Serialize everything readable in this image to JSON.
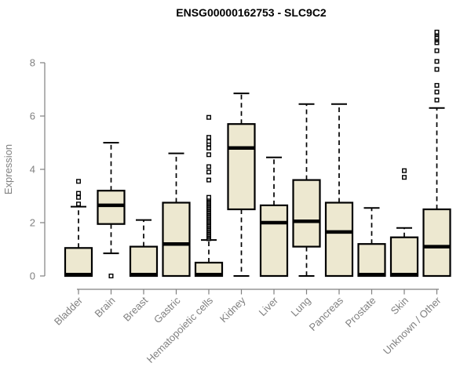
{
  "chart_data": {
    "type": "box",
    "title": "ENSG00000162753 - SLC9C2",
    "ylabel": "Expression",
    "xlabel": "",
    "ylim": [
      0,
      8
    ],
    "yticks": [
      0,
      2,
      4,
      6,
      8
    ],
    "grid": false,
    "legend_position": "none",
    "colors": {
      "box_fill": "#EDE8D0",
      "box_stroke": "#000000",
      "median": "#000000",
      "whisker": "#000000",
      "outlier": "#000000",
      "axis": "#808080",
      "tick_label": "#808080",
      "title": "#000000"
    },
    "categories": [
      "Bladder",
      "Brain",
      "Breast",
      "Gastric",
      "Hematopoietic cells",
      "Kidney",
      "Liver",
      "Lung",
      "Pancreas",
      "Prostate",
      "Skin",
      "Unknown / Other"
    ],
    "series": [
      {
        "category": "Bladder",
        "q1": 0,
        "median": 0.05,
        "q3": 1.05,
        "whisker_low": null,
        "whisker_high": 2.6,
        "outliers": [
          2.7,
          2.95,
          3.1,
          3.55
        ]
      },
      {
        "category": "Brain",
        "q1": 1.95,
        "median": 2.65,
        "q3": 3.2,
        "whisker_low": 0.85,
        "whisker_high": 5.0,
        "outliers": [
          0
        ]
      },
      {
        "category": "Breast",
        "q1": 0,
        "median": 0.05,
        "q3": 1.1,
        "whisker_low": null,
        "whisker_high": 2.1,
        "outliers": []
      },
      {
        "category": "Gastric",
        "q1": 0,
        "median": 1.2,
        "q3": 2.75,
        "whisker_low": null,
        "whisker_high": 4.6,
        "outliers": []
      },
      {
        "category": "Hematopoietic cells",
        "q1": 0,
        "median": 0.05,
        "q3": 0.5,
        "whisker_low": null,
        "whisker_high": 1.35,
        "outliers": [
          1.4,
          1.45,
          1.5,
          1.55,
          1.6,
          1.65,
          1.7,
          1.75,
          1.8,
          1.85,
          1.9,
          1.95,
          2.0,
          2.05,
          2.1,
          2.15,
          2.2,
          2.25,
          2.3,
          2.35,
          2.4,
          2.45,
          2.5,
          2.55,
          2.6,
          2.65,
          2.7,
          2.75,
          2.8,
          2.85,
          2.9,
          2.95,
          3.6,
          3.9,
          4.1,
          4.55,
          4.8,
          4.95,
          5.05,
          5.2,
          5.95
        ]
      },
      {
        "category": "Kidney",
        "q1": 2.5,
        "median": 4.8,
        "q3": 5.7,
        "whisker_low": 0,
        "whisker_high": 6.85,
        "outliers": []
      },
      {
        "category": "Liver",
        "q1": 0,
        "median": 2.0,
        "q3": 2.65,
        "whisker_low": null,
        "whisker_high": 4.45,
        "outliers": []
      },
      {
        "category": "Lung",
        "q1": 1.1,
        "median": 2.05,
        "q3": 3.6,
        "whisker_low": 0,
        "whisker_high": 6.45,
        "outliers": []
      },
      {
        "category": "Pancreas",
        "q1": 0,
        "median": 1.65,
        "q3": 2.75,
        "whisker_low": null,
        "whisker_high": 6.45,
        "outliers": []
      },
      {
        "category": "Prostate",
        "q1": 0,
        "median": 0.05,
        "q3": 1.2,
        "whisker_low": null,
        "whisker_high": 2.55,
        "outliers": []
      },
      {
        "category": "Skin",
        "q1": 0,
        "median": 0.05,
        "q3": 1.45,
        "whisker_low": null,
        "whisker_high": 1.8,
        "outliers": [
          3.7,
          3.95
        ]
      },
      {
        "category": "Unknown / Other",
        "q1": 0,
        "median": 1.1,
        "q3": 2.5,
        "whisker_low": null,
        "whisker_high": 6.3,
        "outliers": [
          6.6,
          6.9,
          7.15,
          7.75,
          8.05,
          8.45,
          8.75,
          8.85,
          8.9,
          8.95,
          9.05,
          9.1,
          9.15
        ]
      }
    ]
  }
}
